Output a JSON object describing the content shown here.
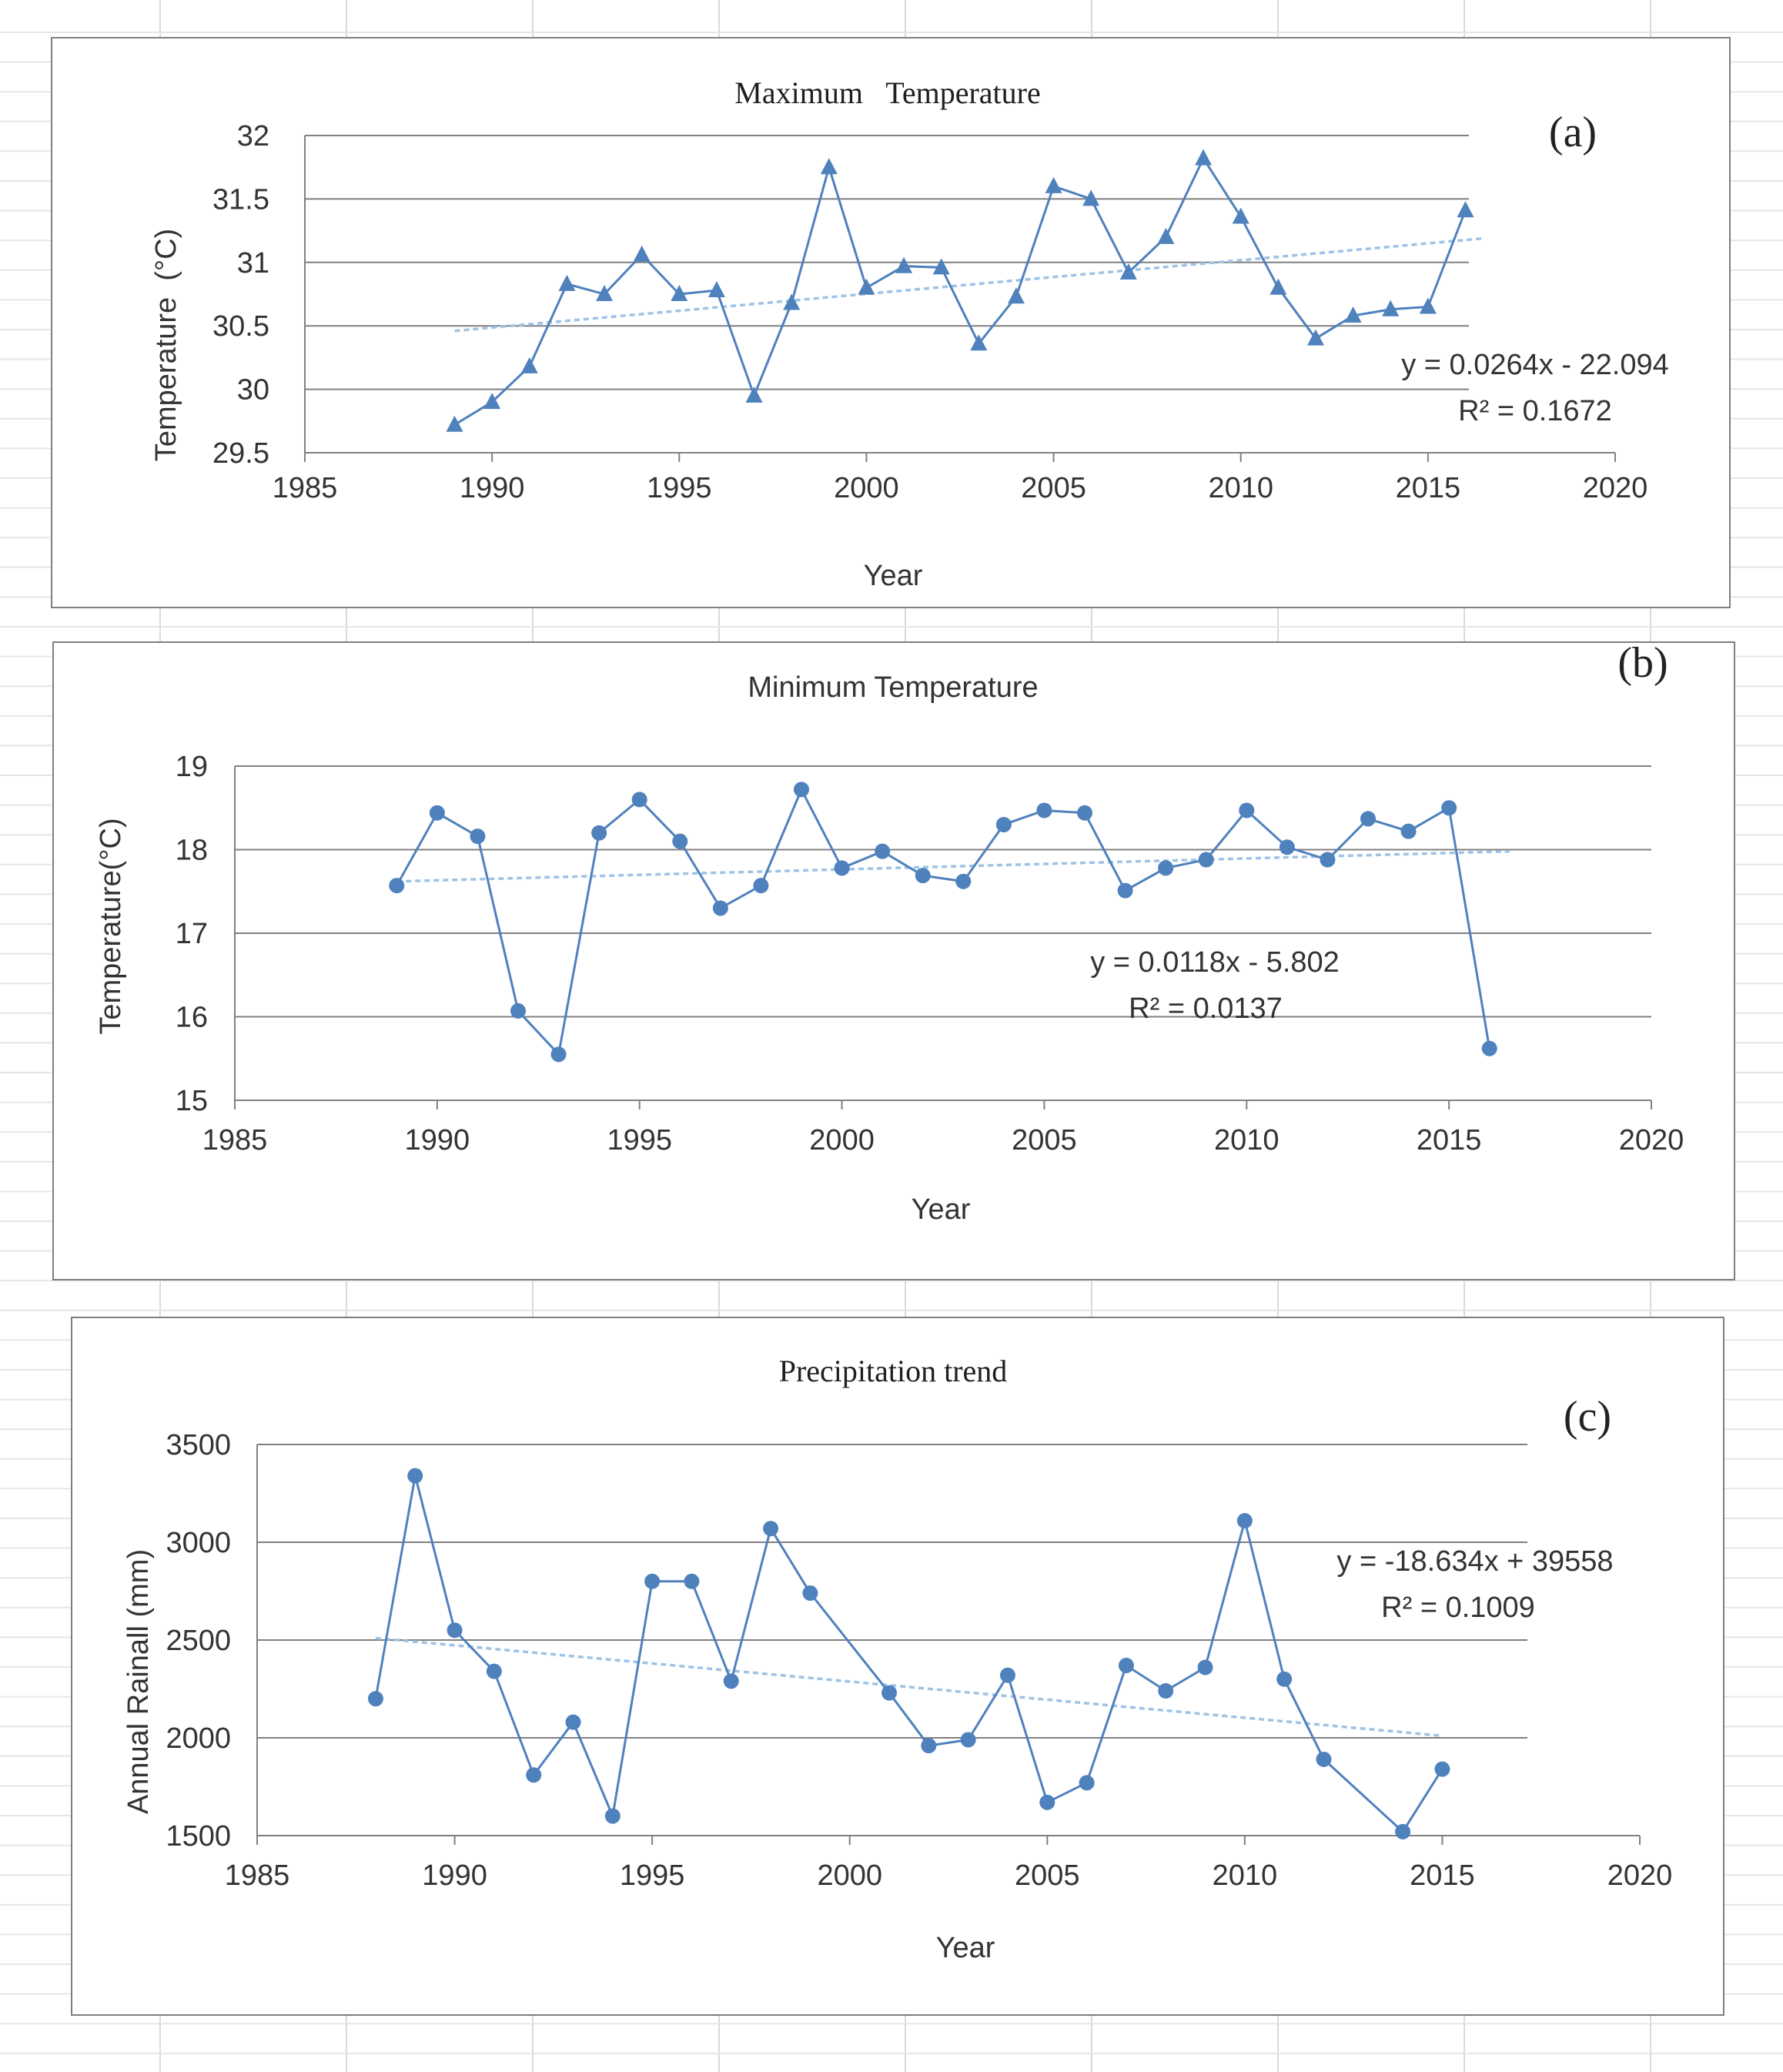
{
  "colors": {
    "series": "#4f81bd",
    "trend": "#9dc3e6",
    "grid": "#808080",
    "border": "#7f7f7f"
  },
  "chart_data": [
    {
      "type": "line",
      "panel_label": "(a)",
      "title": "Maximum   Temperature",
      "xlabel": "Year",
      "ylabel": "Temperature  (°C)",
      "xlim": [
        1985,
        2020
      ],
      "ylim": [
        29.5,
        32
      ],
      "xticks": [
        1985,
        1990,
        1995,
        2000,
        2005,
        2010,
        2015,
        2020
      ],
      "xtick_labels": [
        "1985",
        "1990",
        "1995",
        "2000",
        "2005",
        "2010",
        "2015",
        "2020"
      ],
      "yticks": [
        29.5,
        30,
        30.5,
        31,
        31.5,
        32
      ],
      "ytick_labels": [
        "29.5",
        "30",
        "30.5",
        "31",
        "31.5",
        "32"
      ],
      "grid": true,
      "marker": "triangle",
      "series": [
        {
          "x": [
            1989,
            1990,
            1991,
            1992,
            1993,
            1994,
            1995,
            1996,
            1997,
            1998,
            1999,
            2000,
            2001,
            2002,
            2003,
            2004,
            2005,
            2006,
            2007,
            2008,
            2009,
            2010,
            2011,
            2012,
            2013,
            2014,
            2015,
            2016
          ],
          "values": [
            29.72,
            29.9,
            30.18,
            30.83,
            30.75,
            31.06,
            30.75,
            30.78,
            29.95,
            30.68,
            31.75,
            30.8,
            30.97,
            30.96,
            30.36,
            30.73,
            31.6,
            31.5,
            30.92,
            31.2,
            31.82,
            31.36,
            30.8,
            30.4,
            30.58,
            30.63,
            30.65,
            31.41
          ]
        }
      ],
      "trendline": {
        "x": [
          1989,
          2016.5
        ],
        "values": [
          30.46,
          31.19
        ],
        "equation": "y = 0.0264x - 22.094",
        "r2": "R² = 0.1672"
      }
    },
    {
      "type": "line",
      "panel_label": "(b)",
      "title": "Minimum Temperature",
      "xlabel": "Year",
      "ylabel": "Temperature(°C)",
      "xlim": [
        1985,
        2020
      ],
      "ylim": [
        15,
        19
      ],
      "xticks": [
        1985,
        1990,
        1995,
        2000,
        2005,
        2010,
        2015,
        2020
      ],
      "xtick_labels": [
        "1985",
        "1990",
        "1995",
        "2000",
        "2005",
        "2010",
        "2015",
        "2020"
      ],
      "yticks": [
        15,
        16,
        17,
        18,
        19
      ],
      "ytick_labels": [
        "15",
        "16",
        "17",
        "18",
        "19"
      ],
      "grid": true,
      "marker": "circle",
      "series": [
        {
          "x": [
            1989,
            1990,
            1991,
            1992,
            1993,
            1994,
            1995,
            1996,
            1997,
            1998,
            1999,
            2000,
            2001,
            2002,
            2003,
            2004,
            2005,
            2006,
            2007,
            2008,
            2009,
            2010,
            2011,
            2012,
            2013,
            2014,
            2015,
            2016
          ],
          "values": [
            17.57,
            18.44,
            18.16,
            16.07,
            15.55,
            18.2,
            18.6,
            18.1,
            17.3,
            17.57,
            18.72,
            17.78,
            17.98,
            17.69,
            17.62,
            18.3,
            18.47,
            18.44,
            17.51,
            17.78,
            17.88,
            18.47,
            18.03,
            17.88,
            18.37,
            18.22,
            18.5,
            15.62
          ]
        }
      ],
      "trendline": {
        "x": [
          1989,
          2016.5
        ],
        "values": [
          17.62,
          17.98
        ],
        "equation": "y = 0.0118x - 5.802",
        "r2": "R² = 0.0137"
      }
    },
    {
      "type": "line",
      "panel_label": "(c)",
      "title": "Precipitation trend",
      "xlabel": "Year",
      "ylabel": "Annual Rainall (mm)",
      "xlim": [
        1985,
        2020
      ],
      "ylim": [
        1500,
        3500
      ],
      "xticks": [
        1985,
        1990,
        1995,
        2000,
        2005,
        2010,
        2015,
        2020
      ],
      "xtick_labels": [
        "1985",
        "1990",
        "1995",
        "2000",
        "2005",
        "2010",
        "2015",
        "2020"
      ],
      "yticks": [
        1500,
        2000,
        2500,
        3000,
        3500
      ],
      "ytick_labels": [
        "1500",
        "2000",
        "2500",
        "3000",
        "3500"
      ],
      "grid": true,
      "marker": "circle",
      "series": [
        {
          "x": [
            1988,
            1989,
            1990,
            1991,
            1992,
            1993,
            1994,
            1995,
            1996,
            1997,
            1998,
            1999,
            2001,
            2002,
            2003,
            2004,
            2005,
            2006,
            2007,
            2008,
            2009,
            2010,
            2011,
            2012,
            2014,
            2015
          ],
          "values": [
            2200,
            3340,
            2550,
            2340,
            1810,
            2080,
            1600,
            2800,
            2800,
            2290,
            3070,
            2740,
            2230,
            1960,
            1990,
            2320,
            1670,
            1770,
            2370,
            2240,
            2360,
            3110,
            2300,
            1890,
            1520,
            1840
          ]
        }
      ],
      "trendline": {
        "x": [
          1988,
          2015
        ],
        "values": [
          2510,
          2010
        ],
        "equation": "y = -18.634x + 39558",
        "r2": "R² = 0.1009"
      }
    }
  ]
}
